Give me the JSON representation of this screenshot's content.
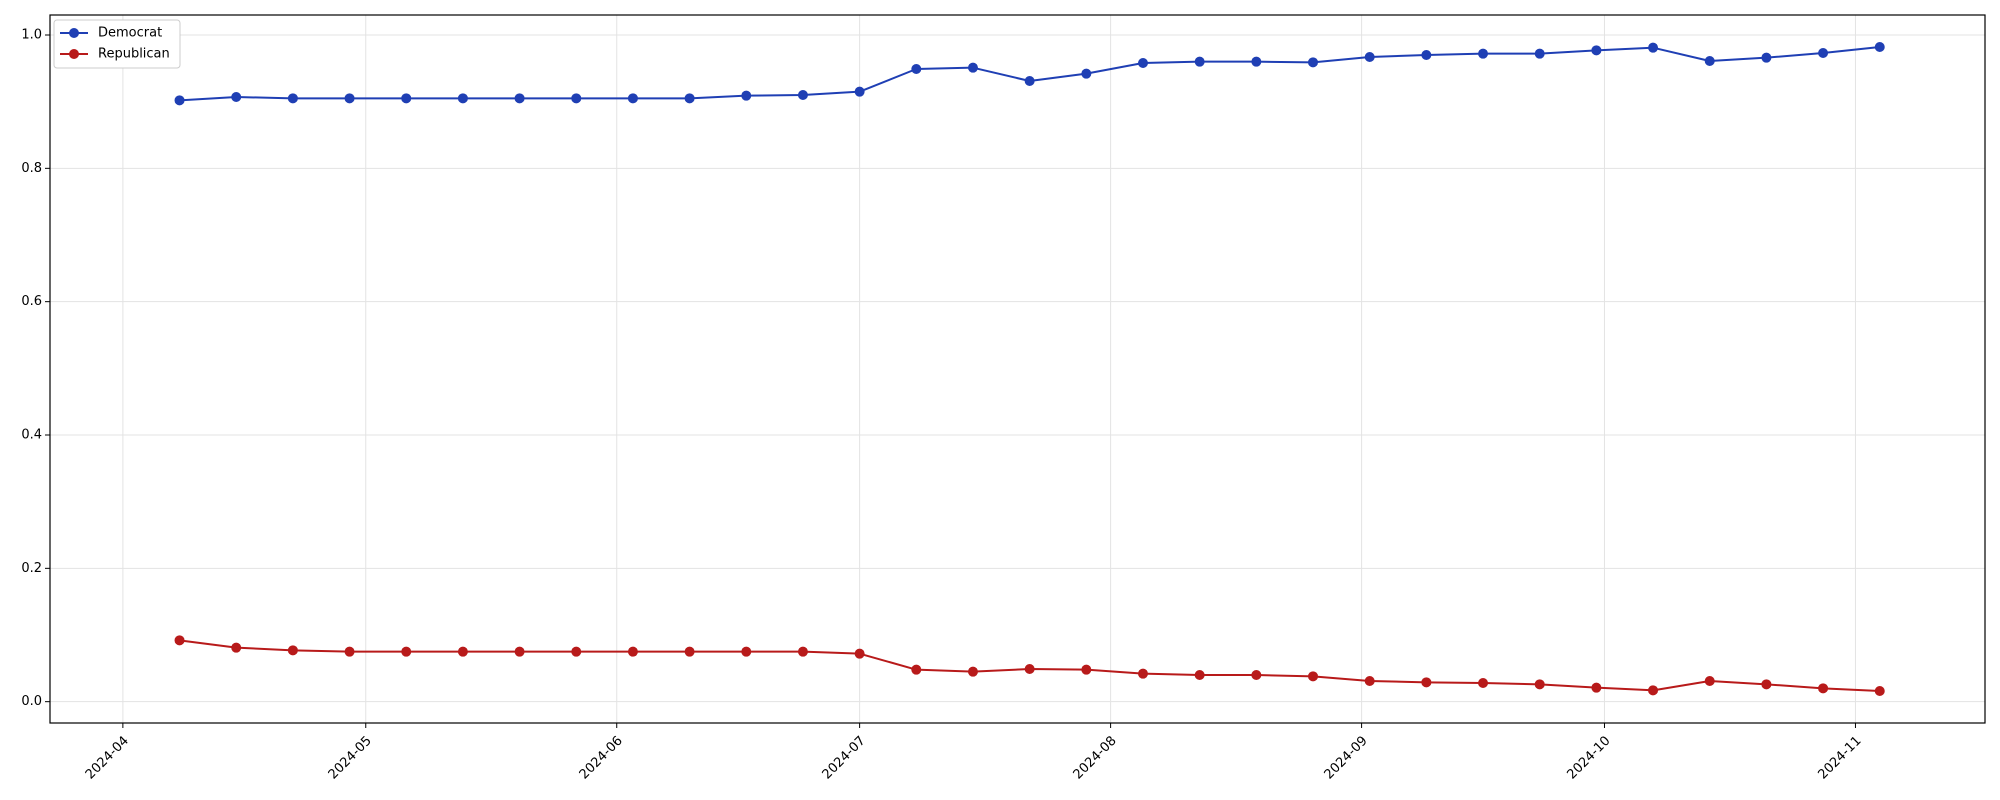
{
  "chart_data": {
    "type": "line",
    "title": "",
    "xlabel": "",
    "ylabel": "",
    "x_type": "date",
    "xlim": [
      "2024-03-23",
      "2024-11-17"
    ],
    "ylim": [
      -0.032,
      1.03
    ],
    "x_ticks": [
      "2024-04-01",
      "2024-05-01",
      "2024-06-01",
      "2024-07-01",
      "2024-08-01",
      "2024-09-01",
      "2024-10-01",
      "2024-11-01"
    ],
    "x_tick_labels": [
      "2024-04",
      "2024-05",
      "2024-06",
      "2024-07",
      "2024-08",
      "2024-09",
      "2024-10",
      "2024-11"
    ],
    "y_ticks": [
      0.0,
      0.2,
      0.4,
      0.6,
      0.8,
      1.0
    ],
    "y_tick_labels": [
      "0.0",
      "0.2",
      "0.4",
      "0.6",
      "0.8",
      "1.0"
    ],
    "grid": true,
    "legend_position": "top-left",
    "x": [
      "2024-04-08",
      "2024-04-15",
      "2024-04-22",
      "2024-04-29",
      "2024-05-06",
      "2024-05-13",
      "2024-05-20",
      "2024-05-27",
      "2024-06-03",
      "2024-06-10",
      "2024-06-17",
      "2024-06-24",
      "2024-07-01",
      "2024-07-08",
      "2024-07-15",
      "2024-07-22",
      "2024-07-29",
      "2024-08-05",
      "2024-08-12",
      "2024-08-19",
      "2024-08-26",
      "2024-09-02",
      "2024-09-09",
      "2024-09-16",
      "2024-09-23",
      "2024-09-30",
      "2024-10-07",
      "2024-10-14",
      "2024-10-21",
      "2024-10-28",
      "2024-11-04"
    ],
    "series": [
      {
        "name": "Democrat",
        "color": "#1f3fb4",
        "values": [
          0.902,
          0.907,
          0.905,
          0.905,
          0.905,
          0.905,
          0.905,
          0.905,
          0.905,
          0.905,
          0.909,
          0.91,
          0.915,
          0.949,
          0.951,
          0.931,
          0.942,
          0.958,
          0.96,
          0.96,
          0.959,
          0.967,
          0.97,
          0.972,
          0.972,
          0.977,
          0.981,
          0.961,
          0.966,
          0.973,
          0.982
        ]
      },
      {
        "name": "Republican",
        "color": "#b81a1a",
        "values": [
          0.092,
          0.081,
          0.077,
          0.075,
          0.075,
          0.075,
          0.075,
          0.075,
          0.075,
          0.075,
          0.075,
          0.075,
          0.072,
          0.048,
          0.045,
          0.049,
          0.048,
          0.042,
          0.04,
          0.04,
          0.038,
          0.031,
          0.029,
          0.028,
          0.026,
          0.021,
          0.017,
          0.031,
          0.026,
          0.02,
          0.016
        ]
      }
    ]
  }
}
